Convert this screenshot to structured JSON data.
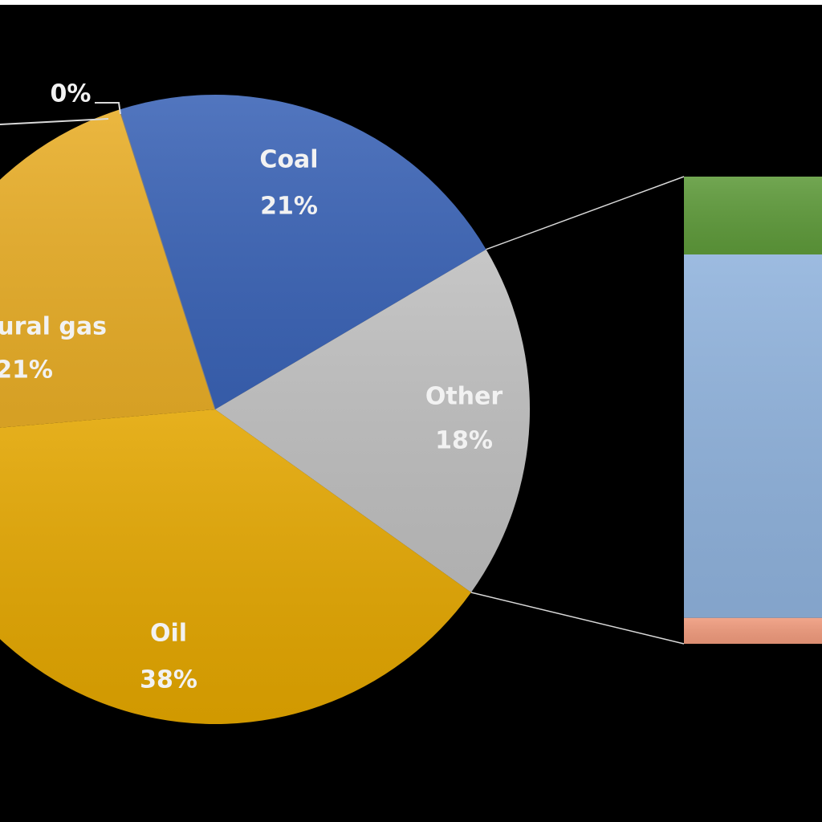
{
  "chart_data": {
    "type": "pie-of-bar",
    "categories": [
      "Coal",
      "Other",
      "Oil",
      "Natural gas",
      null
    ],
    "values": [
      21,
      18,
      38,
      21,
      0
    ],
    "value_labels": [
      "21%",
      "18%",
      "38%",
      "21%",
      "0%"
    ],
    "colors": [
      "#3a63b6",
      "#bfbfbf",
      "#e3a600",
      "#e8ad26",
      "#7f7f7f"
    ],
    "bar_values": [
      1,
      14,
      3
    ],
    "bar_colors": [
      "#ef9a7c",
      "#8fb2dc",
      "#5e9a3a"
    ]
  }
}
